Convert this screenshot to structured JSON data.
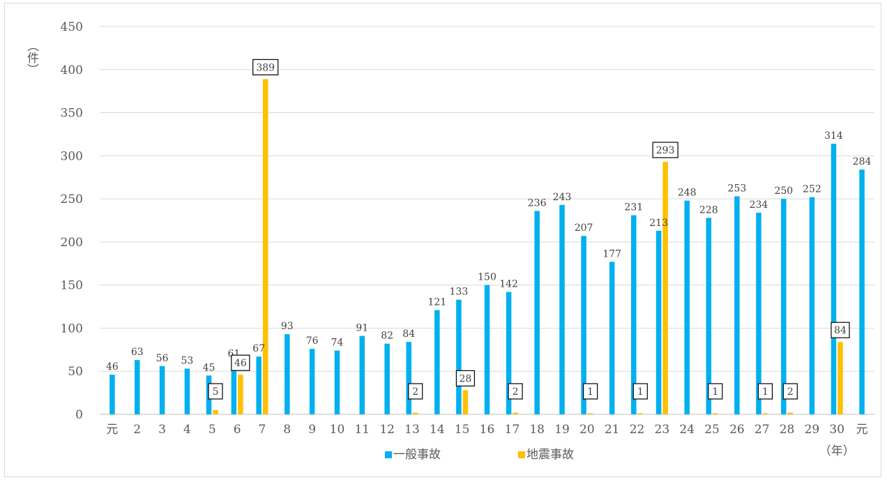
{
  "chart_data": {
    "type": "bar",
    "ylabel": "（件）",
    "xlabel": "（年）",
    "ylim": [
      0,
      450
    ],
    "yticks": [
      0,
      50,
      100,
      150,
      200,
      250,
      300,
      350,
      400,
      450
    ],
    "grid": true,
    "legend_position": "bottom",
    "categories": [
      "元",
      "2",
      "3",
      "4",
      "5",
      "6",
      "7",
      "8",
      "9",
      "10",
      "11",
      "12",
      "13",
      "14",
      "15",
      "16",
      "17",
      "18",
      "19",
      "20",
      "21",
      "22",
      "23",
      "24",
      "25",
      "26",
      "27",
      "28",
      "29",
      "30",
      "元"
    ],
    "series": [
      {
        "name": "一般事故",
        "color": "#00b0f0",
        "values": [
          46,
          63,
          56,
          53,
          45,
          61,
          67,
          93,
          76,
          74,
          91,
          82,
          84,
          121,
          133,
          150,
          142,
          236,
          243,
          207,
          177,
          231,
          213,
          248,
          228,
          253,
          234,
          250,
          252,
          314,
          284
        ]
      },
      {
        "name": "地震事故",
        "color": "#ffc000",
        "values": [
          null,
          null,
          null,
          null,
          5,
          46,
          389,
          null,
          null,
          null,
          null,
          null,
          2,
          null,
          28,
          null,
          2,
          null,
          null,
          1,
          null,
          1,
          293,
          null,
          1,
          null,
          1,
          2,
          null,
          84,
          null
        ]
      }
    ]
  }
}
